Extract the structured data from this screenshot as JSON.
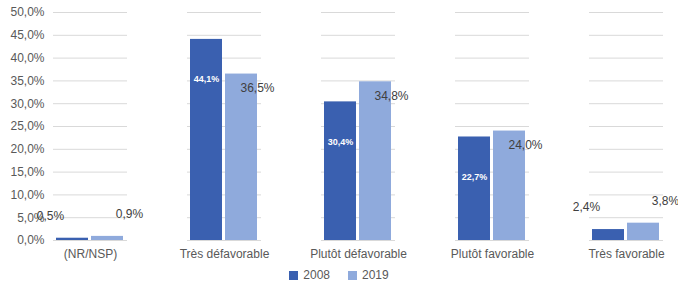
{
  "chart_data": {
    "type": "bar",
    "categories": [
      "(NR/NSP)",
      "Très défavorable",
      "Plutôt défavorable",
      "Plutôt favorable",
      "Très favorable"
    ],
    "series": [
      {
        "name": "2008",
        "color": "#3a60b0",
        "values": [
          0.5,
          44.1,
          30.4,
          22.7,
          2.4
        ],
        "value_labels": [
          "0,5%",
          "44,1%",
          "30,4%",
          "22,7%",
          "2,4%"
        ]
      },
      {
        "name": "2019",
        "color": "#8faadc",
        "values": [
          0.9,
          36.5,
          34.8,
          24.0,
          3.8
        ],
        "value_labels": [
          "0,9%",
          "36,5%",
          "34,8%",
          "24,0%",
          "3,8%"
        ]
      }
    ],
    "ylim": [
      0,
      50
    ],
    "yticks": [
      {
        "value": 0,
        "label": "0,0%"
      },
      {
        "value": 5,
        "label": "5,0%"
      },
      {
        "value": 10,
        "label": "10,0%"
      },
      {
        "value": 15,
        "label": "15,0%"
      },
      {
        "value": 20,
        "label": "20,0%"
      },
      {
        "value": 25,
        "label": "25,0%"
      },
      {
        "value": 30,
        "label": "30,0%"
      },
      {
        "value": 35,
        "label": "35,0%"
      },
      {
        "value": 40,
        "label": "40,0%"
      },
      {
        "value": 45,
        "label": "45,0%"
      },
      {
        "value": 50,
        "label": "50,0%"
      }
    ],
    "grid": true,
    "data_labels": true,
    "legend": "bottom"
  }
}
